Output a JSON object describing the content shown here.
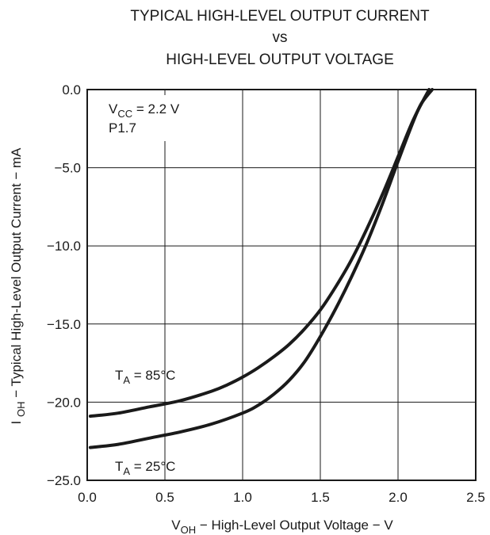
{
  "chart_data": {
    "type": "line",
    "title": [
      "TYPICAL HIGH-LEVEL OUTPUT CURRENT",
      "vs",
      "HIGH-LEVEL OUTPUT VOLTAGE"
    ],
    "xlabel": {
      "prefix": "V",
      "sub": "OH",
      "rest": " − High-Level Output Voltage − V"
    },
    "ylabel": {
      "prefix": "I ",
      "sub": "OH",
      "rest": " − Typical High-Level Output Current − mA"
    },
    "xlim": [
      0.0,
      2.5
    ],
    "ylim": [
      -25.0,
      0.0
    ],
    "x_ticks": [
      "0.0",
      "0.5",
      "1.0",
      "1.5",
      "2.0",
      "2.5"
    ],
    "y_ticks": [
      "0.0",
      "−5.0",
      "−10.0",
      "−15.0",
      "−20.0",
      "−25.0"
    ],
    "grid": true,
    "annotations": {
      "condition": {
        "prefix": "V",
        "sub": "CC",
        "rest": " = 2.2 V"
      },
      "pin": "P1.7"
    },
    "series": [
      {
        "name": {
          "prefix": "T",
          "sub": "A",
          "rest": " = 85°C"
        },
        "x": [
          0.02,
          0.2,
          0.4,
          0.6,
          0.8,
          0.9,
          1.0,
          1.1,
          1.2,
          1.3,
          1.4,
          1.5,
          1.6,
          1.7,
          1.8,
          1.9,
          2.0,
          2.1,
          2.2
        ],
        "y": [
          -20.9,
          -20.7,
          -20.3,
          -19.9,
          -19.3,
          -18.9,
          -18.4,
          -17.8,
          -17.1,
          -16.3,
          -15.3,
          -14.1,
          -12.6,
          -10.9,
          -8.9,
          -6.7,
          -4.3,
          -1.9,
          0.0
        ]
      },
      {
        "name": {
          "prefix": "T",
          "sub": "A",
          "rest": " = 25°C"
        },
        "x": [
          0.02,
          0.2,
          0.4,
          0.6,
          0.8,
          1.0,
          1.1,
          1.2,
          1.3,
          1.4,
          1.5,
          1.6,
          1.7,
          1.8,
          1.9,
          2.0,
          2.1,
          2.15,
          2.22
        ],
        "y": [
          -22.9,
          -22.7,
          -22.3,
          -21.9,
          -21.4,
          -20.7,
          -20.2,
          -19.5,
          -18.6,
          -17.4,
          -15.8,
          -14.0,
          -12.0,
          -9.8,
          -7.3,
          -4.6,
          -2.0,
          -0.9,
          0.0
        ]
      }
    ]
  }
}
